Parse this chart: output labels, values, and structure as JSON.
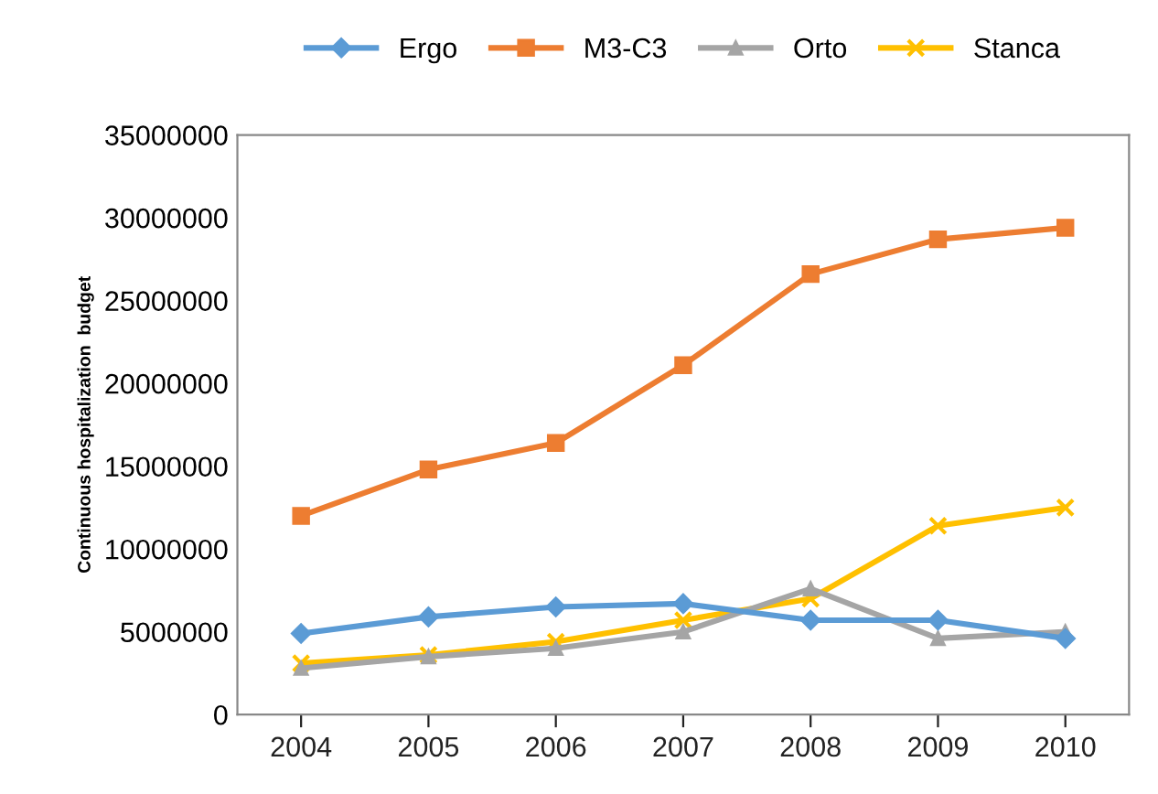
{
  "chart_data": {
    "type": "line",
    "ylabel": "Continuous hospitalization  budget",
    "categories": [
      "2004",
      "2005",
      "2006",
      "2007",
      "2008",
      "2009",
      "2010"
    ],
    "series": [
      {
        "name": "Ergo",
        "color": "#5b9bd5",
        "marker": "diamond",
        "values": [
          4900000,
          5900000,
          6500000,
          6700000,
          5700000,
          5700000,
          4600000
        ]
      },
      {
        "name": "M3-C3",
        "color": "#ed7d31",
        "marker": "square",
        "values": [
          12000000,
          14800000,
          16400000,
          21100000,
          26600000,
          28700000,
          29400000
        ]
      },
      {
        "name": "Orto",
        "color": "#a5a5a5",
        "marker": "triangle",
        "values": [
          2800000,
          3500000,
          4000000,
          5000000,
          7600000,
          4600000,
          5000000
        ]
      },
      {
        "name": "Stanca",
        "color": "#ffc000",
        "marker": "cross",
        "values": [
          3100000,
          3600000,
          4400000,
          5700000,
          7000000,
          11400000,
          12500000
        ]
      }
    ],
    "ylim": [
      0,
      35000000
    ],
    "yticks": [
      0,
      5000000,
      10000000,
      15000000,
      20000000,
      25000000,
      30000000,
      35000000
    ],
    "grid": false,
    "legend": "top"
  }
}
